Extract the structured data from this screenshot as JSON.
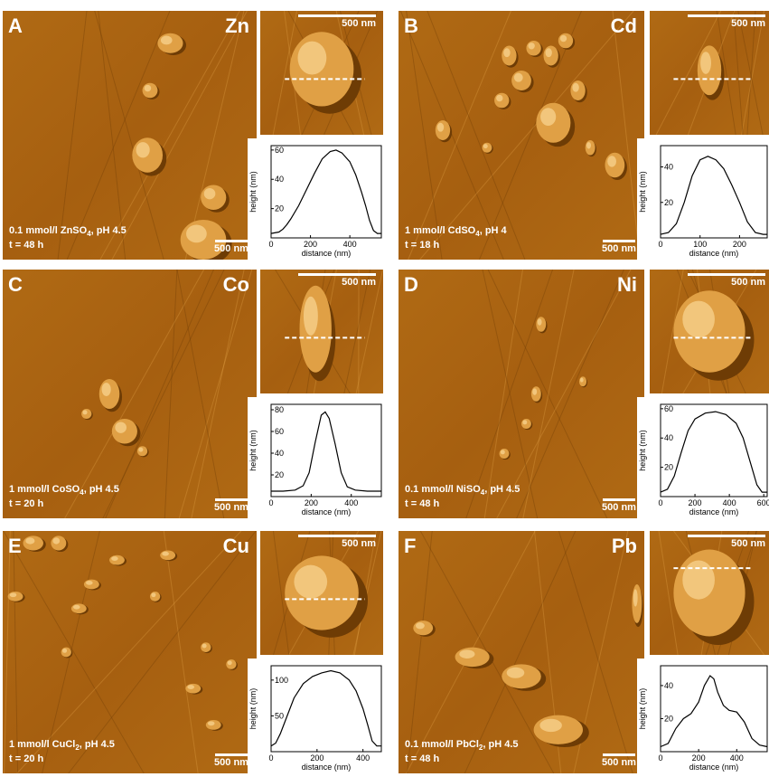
{
  "panels": [
    {
      "letter": "A",
      "element": "Zn",
      "condition_main": "0.1 mmol/l ZnSO",
      "condition_sub": "4",
      "condition_tail": ", pH 4.5",
      "time": "t = 48 h",
      "main_scalebar": "500 nm",
      "inset_scalebar": "500 nm",
      "profile": {
        "xlabel": "distance (nm)",
        "ylabel": "height (nm)",
        "xticks": [
          "0",
          "200",
          "400"
        ],
        "xtick_values": [
          0,
          200,
          400
        ],
        "xlim": [
          0,
          560
        ],
        "yticks": [
          "20",
          "40",
          "60"
        ],
        "ytick_values": [
          20,
          40,
          60
        ],
        "ylim": [
          0,
          63
        ],
        "x": [
          0,
          40,
          60,
          80,
          100,
          140,
          180,
          220,
          260,
          300,
          330,
          360,
          400,
          430,
          460,
          480,
          500,
          520,
          540,
          560
        ],
        "y": [
          3,
          4,
          6,
          9,
          13,
          22,
          33,
          44,
          54,
          59,
          60,
          58,
          52,
          43,
          31,
          22,
          12,
          5,
          3,
          3
        ]
      }
    },
    {
      "letter": "B",
      "element": "Cd",
      "condition_main": "1 mmol/l CdSO",
      "condition_sub": "4",
      "condition_tail": ", pH 4",
      "time": "t = 18 h",
      "main_scalebar": "500 nm",
      "inset_scalebar": "500 nm",
      "profile": {
        "xlabel": "distance (nm)",
        "ylabel": "height (nm)",
        "xticks": [
          "0",
          "100",
          "200"
        ],
        "xtick_values": [
          0,
          100,
          200
        ],
        "xlim": [
          0,
          270
        ],
        "yticks": [
          "20",
          "40"
        ],
        "ytick_values": [
          20,
          40
        ],
        "ylim": [
          0,
          52
        ],
        "x": [
          0,
          20,
          40,
          60,
          80,
          100,
          120,
          140,
          160,
          180,
          200,
          220,
          240,
          260,
          270
        ],
        "y": [
          2,
          3,
          8,
          20,
          35,
          44,
          46,
          44,
          39,
          30,
          20,
          9,
          3,
          2,
          2
        ]
      }
    },
    {
      "letter": "C",
      "element": "Co",
      "condition_main": "1 mmol/l CoSO",
      "condition_sub": "4",
      "condition_tail": ", pH 4.5",
      "time": "t = 20 h",
      "main_scalebar": "500 nm",
      "inset_scalebar": "500 nm",
      "profile": {
        "xlabel": "distance (nm)",
        "ylabel": "height (nm)",
        "xticks": [
          "0",
          "200",
          "400"
        ],
        "xtick_values": [
          0,
          200,
          400
        ],
        "xlim": [
          0,
          550
        ],
        "yticks": [
          "20",
          "40",
          "60",
          "80"
        ],
        "ytick_values": [
          20,
          40,
          60,
          80
        ],
        "ylim": [
          0,
          85
        ],
        "x": [
          0,
          60,
          120,
          160,
          190,
          220,
          250,
          270,
          290,
          320,
          350,
          380,
          420,
          480,
          550
        ],
        "y": [
          5,
          5,
          6,
          10,
          22,
          50,
          75,
          78,
          72,
          48,
          22,
          9,
          6,
          5,
          5
        ]
      }
    },
    {
      "letter": "D",
      "element": "Ni",
      "condition_main": "0.1 mmol/l NiSO",
      "condition_sub": "4",
      "condition_tail": ", pH 4.5",
      "time": "t = 48 h",
      "main_scalebar": "500 nm",
      "inset_scalebar": "500 nm",
      "profile": {
        "xlabel": "distance (nm)",
        "ylabel": "height (nm)",
        "xticks": [
          "0",
          "200",
          "400",
          "600"
        ],
        "xtick_values": [
          0,
          200,
          400,
          600
        ],
        "xlim": [
          0,
          620
        ],
        "yticks": [
          "20",
          "40",
          "60"
        ],
        "ytick_values": [
          20,
          40,
          60
        ],
        "ylim": [
          0,
          63
        ],
        "x": [
          0,
          40,
          80,
          120,
          160,
          200,
          260,
          320,
          380,
          440,
          480,
          520,
          560,
          590,
          620
        ],
        "y": [
          3,
          5,
          14,
          30,
          45,
          53,
          57,
          58,
          56,
          50,
          40,
          24,
          8,
          3,
          3
        ]
      }
    },
    {
      "letter": "E",
      "element": "Cu",
      "condition_main": "1 mmol/l CuCl",
      "condition_sub": "2",
      "condition_tail": ", pH 4.5",
      "time": "t = 20 h",
      "main_scalebar": "500 nm",
      "inset_scalebar": "500 nm",
      "profile": {
        "xlabel": "distance (nm)",
        "ylabel": "height (nm)",
        "xticks": [
          "0",
          "200",
          "400"
        ],
        "xtick_values": [
          0,
          200,
          400
        ],
        "xlim": [
          0,
          480
        ],
        "yticks": [
          "50",
          "100"
        ],
        "ytick_values": [
          50,
          100
        ],
        "ylim": [
          0,
          120
        ],
        "x": [
          0,
          20,
          40,
          70,
          100,
          140,
          180,
          220,
          260,
          300,
          340,
          370,
          400,
          420,
          440,
          460,
          480
        ],
        "y": [
          8,
          12,
          25,
          50,
          75,
          95,
          105,
          110,
          113,
          110,
          100,
          85,
          60,
          38,
          15,
          8,
          8
        ]
      }
    },
    {
      "letter": "F",
      "element": "Pb",
      "condition_main": "0.1 mmol/l PbCl",
      "condition_sub": "2",
      "condition_tail": ", pH 4.5",
      "time": "t = 48 h",
      "main_scalebar": "500 nm",
      "inset_scalebar": "500 nm",
      "profile": {
        "xlabel": "distance (nm)",
        "ylabel": "height (nm)",
        "xticks": [
          "0",
          "200",
          "400"
        ],
        "xtick_values": [
          0,
          200,
          400
        ],
        "xlim": [
          0,
          560
        ],
        "yticks": [
          "20",
          "40"
        ],
        "ytick_values": [
          20,
          40
        ],
        "ylim": [
          0,
          52
        ],
        "x": [
          0,
          40,
          80,
          120,
          160,
          200,
          230,
          260,
          280,
          300,
          330,
          360,
          400,
          440,
          480,
          520,
          560
        ],
        "y": [
          3,
          5,
          14,
          20,
          23,
          30,
          40,
          46,
          44,
          36,
          28,
          25,
          24,
          18,
          8,
          4,
          3
        ]
      }
    }
  ],
  "colors": {
    "afm_dark": "#6e3c05",
    "afm_mid": "#b06a14",
    "afm_light": "#e0a045"
  }
}
